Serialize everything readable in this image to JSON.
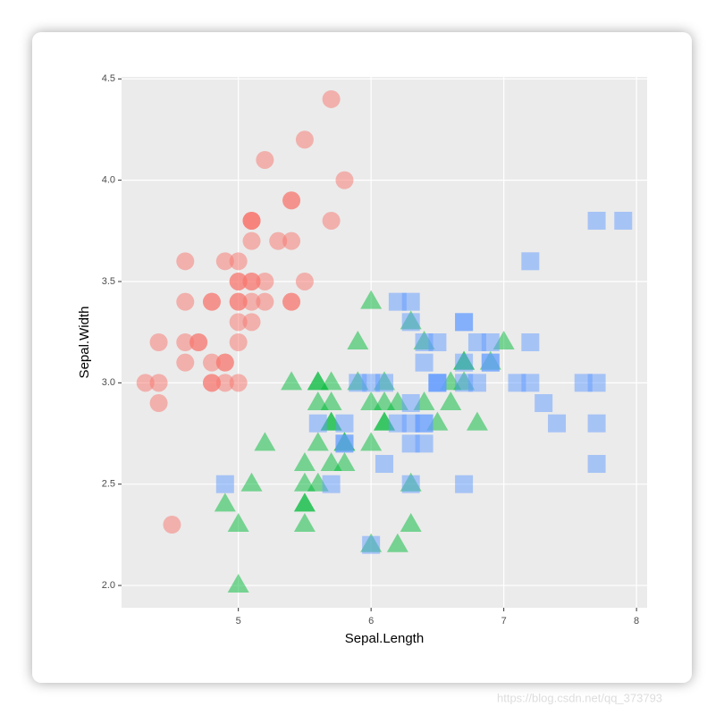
{
  "chart_data": {
    "type": "scatter",
    "x_label": "Sepal.Length",
    "y_label": "Sepal.Width",
    "xlim": [
      4.12,
      8.08
    ],
    "ylim": [
      1.89,
      4.51
    ],
    "xticks": [
      5,
      6,
      7,
      8
    ],
    "yticks": [
      {
        "value": 2,
        "label": "2.0"
      },
      {
        "value": 2.5,
        "label": "2.5"
      },
      {
        "value": 3,
        "label": "3.0"
      },
      {
        "value": 3.5,
        "label": "3.5"
      },
      {
        "value": 4,
        "label": "4.0"
      },
      {
        "value": 4.5,
        "label": "4.5"
      }
    ],
    "grid": true,
    "alpha": 0.5,
    "series": [
      {
        "color": "#F8766D",
        "shape": "circle",
        "x": [
          5.1,
          4.9,
          4.7,
          4.6,
          5.0,
          5.4,
          4.6,
          5.0,
          4.4,
          4.9,
          5.4,
          4.8,
          4.8,
          4.3,
          5.8,
          5.7,
          5.4,
          5.1,
          5.7,
          5.1,
          5.4,
          5.1,
          4.6,
          5.1,
          4.8,
          5.0,
          5.0,
          5.2,
          5.2,
          4.7,
          4.8,
          5.4,
          5.2,
          5.5,
          4.9,
          5.0,
          5.5,
          4.9,
          4.4,
          5.1,
          5.0,
          4.5,
          4.4,
          5.0,
          5.1,
          4.8,
          5.1,
          4.6,
          5.3,
          5.0
        ],
        "values": [
          3.5,
          3.0,
          3.2,
          3.1,
          3.6,
          3.9,
          3.4,
          3.4,
          2.9,
          3.1,
          3.7,
          3.4,
          3.0,
          3.0,
          4.0,
          4.4,
          3.9,
          3.5,
          3.8,
          3.8,
          3.4,
          3.7,
          3.6,
          3.3,
          3.4,
          3.0,
          3.4,
          3.5,
          3.4,
          3.2,
          3.1,
          3.4,
          4.1,
          4.2,
          3.1,
          3.2,
          3.5,
          3.6,
          3.0,
          3.4,
          3.5,
          2.3,
          3.2,
          3.5,
          3.8,
          3.0,
          3.8,
          3.2,
          3.7,
          3.3
        ]
      },
      {
        "color": "#00BA38",
        "shape": "triangle",
        "x": [
          7.0,
          6.4,
          6.9,
          5.5,
          6.5,
          5.7,
          6.3,
          4.9,
          6.6,
          5.2,
          5.0,
          5.9,
          6.0,
          6.1,
          5.6,
          6.7,
          5.6,
          5.8,
          6.2,
          5.6,
          5.9,
          6.1,
          6.3,
          6.1,
          6.4,
          6.6,
          6.8,
          6.7,
          6.0,
          5.7,
          5.5,
          5.5,
          5.8,
          6.0,
          5.4,
          6.0,
          6.7,
          6.3,
          5.6,
          5.5,
          5.5,
          6.1,
          5.8,
          5.0,
          5.6,
          5.7,
          5.7,
          6.2,
          5.1,
          5.7
        ],
        "values": [
          3.2,
          3.2,
          3.1,
          2.3,
          2.8,
          2.8,
          3.3,
          2.4,
          2.9,
          2.7,
          2.0,
          3.0,
          2.2,
          2.9,
          2.9,
          3.1,
          3.0,
          2.7,
          2.2,
          2.5,
          3.2,
          2.8,
          2.5,
          2.8,
          2.9,
          3.0,
          2.8,
          3.0,
          2.9,
          2.6,
          2.4,
          2.4,
          2.7,
          2.7,
          3.0,
          3.4,
          3.1,
          2.3,
          3.0,
          2.5,
          2.6,
          3.0,
          2.6,
          2.3,
          2.7,
          3.0,
          2.9,
          2.9,
          2.5,
          2.8
        ]
      },
      {
        "color": "#619CFF",
        "shape": "square",
        "x": [
          6.3,
          5.8,
          7.1,
          6.3,
          6.5,
          7.6,
          4.9,
          7.3,
          6.7,
          7.2,
          6.5,
          6.4,
          6.8,
          5.7,
          5.8,
          6.4,
          6.5,
          7.7,
          7.7,
          6.0,
          6.9,
          5.6,
          7.7,
          6.3,
          6.7,
          7.2,
          6.2,
          6.1,
          6.4,
          7.2,
          7.4,
          7.9,
          6.4,
          6.3,
          6.1,
          7.7,
          6.3,
          6.4,
          6.0,
          6.9,
          6.7,
          6.9,
          5.8,
          6.8,
          6.7,
          6.7,
          6.3,
          6.5,
          6.2,
          5.9
        ],
        "values": [
          3.3,
          2.7,
          3.0,
          2.9,
          3.0,
          3.0,
          2.5,
          2.9,
          2.5,
          3.6,
          3.2,
          2.7,
          3.0,
          2.5,
          2.8,
          3.2,
          3.0,
          3.8,
          2.6,
          2.2,
          3.2,
          2.8,
          2.8,
          2.7,
          3.3,
          3.2,
          2.8,
          3.0,
          2.8,
          3.0,
          2.8,
          3.8,
          2.8,
          2.8,
          2.6,
          3.0,
          3.4,
          3.1,
          3.0,
          3.1,
          3.1,
          3.1,
          2.7,
          3.2,
          3.3,
          3.0,
          2.5,
          3.0,
          3.4,
          3.0
        ]
      }
    ]
  },
  "watermark": "https://blog.csdn.net/qq_373793"
}
